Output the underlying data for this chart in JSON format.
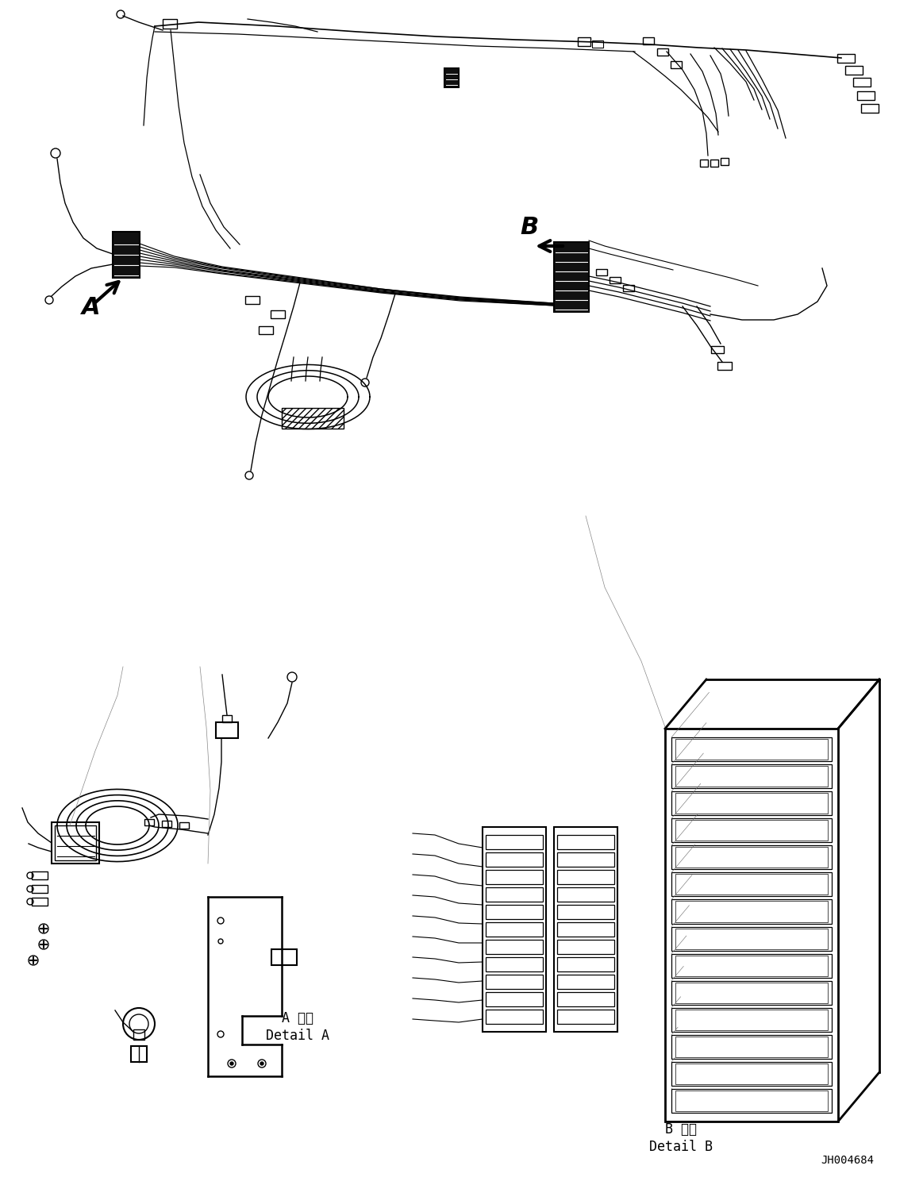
{
  "background_color": "#ffffff",
  "line_color": "#000000",
  "figure_width": 11.63,
  "figure_height": 14.88,
  "dpi": 100,
  "part_code": "JH004684",
  "label_A": "A",
  "label_B": "B",
  "detail_A_jp": "A 詳細",
  "detail_A_en": "Detail A",
  "detail_B_jp": "B 詳細",
  "detail_B_en": "Detail B"
}
